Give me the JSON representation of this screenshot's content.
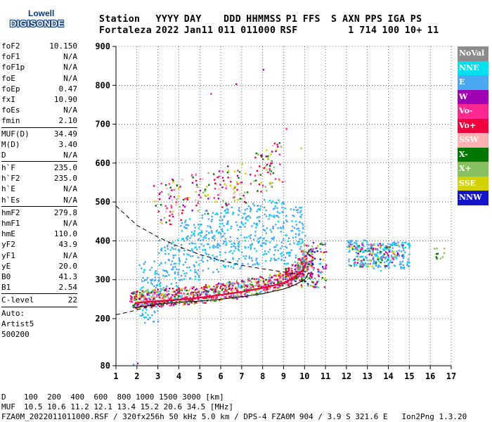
{
  "logo": {
    "line1": "Lowell",
    "line2": "DIGISONDE"
  },
  "header": {
    "labels": [
      "Station",
      "YYYY",
      "DAY",
      "DDD",
      "HHMMSS",
      "P1",
      "FFS",
      "S",
      "AXN",
      "PPS",
      "IGA",
      "PS"
    ],
    "values": [
      "Fortaleza",
      "2022",
      "Jan11",
      "011",
      "011000",
      "RSF",
      "1",
      "714",
      "100",
      "10+",
      "11"
    ]
  },
  "params": {
    "group1": [
      {
        "name": "foF2",
        "value": "10.150"
      },
      {
        "name": "foF1",
        "value": "N/A"
      },
      {
        "name": "foF1p",
        "value": "N/A"
      },
      {
        "name": "foE",
        "value": "N/A"
      },
      {
        "name": "foEp",
        "value": "0.47"
      },
      {
        "name": "fxI",
        "value": "10.90"
      },
      {
        "name": "foEs",
        "value": "N/A"
      },
      {
        "name": "fmin",
        "value": "2.10"
      }
    ],
    "group2": [
      {
        "name": "MUF(D)",
        "value": "34.49"
      },
      {
        "name": "M(D)",
        "value": "3.40"
      },
      {
        "name": "D",
        "value": "N/A"
      }
    ],
    "group3": [
      {
        "name": "h`F",
        "value": "235.0"
      },
      {
        "name": "h`F2",
        "value": "235.0"
      },
      {
        "name": "h`E",
        "value": "N/A"
      },
      {
        "name": "h`Es",
        "value": "N/A"
      }
    ],
    "group4": [
      {
        "name": "hmF2",
        "value": "279.8"
      },
      {
        "name": "hmF1",
        "value": "N/A"
      },
      {
        "name": "hmE",
        "value": "110.0"
      },
      {
        "name": "yF2",
        "value": "43.9"
      },
      {
        "name": "yF1",
        "value": "N/A"
      },
      {
        "name": "yE",
        "value": "20.0"
      },
      {
        "name": "B0",
        "value": "41.3"
      },
      {
        "name": "B1",
        "value": "2.54"
      }
    ],
    "group5": [
      {
        "name": "C-level",
        "value": "22"
      }
    ],
    "auto": [
      "Auto:",
      "Artist5",
      "500200"
    ]
  },
  "legend": [
    {
      "label": "NoVal",
      "color": "#8c8c8c"
    },
    {
      "label": "NNE",
      "color": "#00e0f0"
    },
    {
      "label": "E",
      "color": "#4aa8f0"
    },
    {
      "label": "W",
      "color": "#a000b4"
    },
    {
      "label": "Vo-",
      "color": "#ff2890"
    },
    {
      "label": "Vo+",
      "color": "#f0003c"
    },
    {
      "label": "SSW",
      "color": "#ffb0b0"
    },
    {
      "label": "X-",
      "color": "#007800"
    },
    {
      "label": "X+",
      "color": "#88c060"
    },
    {
      "label": "SSE",
      "color": "#d2d200"
    },
    {
      "label": "NNW",
      "color": "#1414c8"
    }
  ],
  "chart_data": {
    "type": "scatter",
    "xlabel": "",
    "ylabel": "",
    "xlim": [
      1,
      17
    ],
    "ylim": [
      80,
      900
    ],
    "x_ticks": [
      "1",
      "2",
      "3",
      "4",
      "5",
      "6",
      "7",
      "8",
      "9",
      "10",
      "11",
      "12",
      "13",
      "14",
      "15",
      "16",
      "17"
    ],
    "y_ticks": [
      "80",
      "200",
      "300",
      "400",
      "500",
      "600",
      "700",
      "800",
      "900"
    ],
    "grid": true,
    "legend_position": "right",
    "series": [
      {
        "name": "Vo+",
        "x": [
          1.9,
          2.2,
          2.6,
          3.0,
          3.5,
          4.0,
          4.5,
          5.0,
          5.5,
          6.0,
          6.5,
          7.0,
          7.5,
          8.0,
          8.5,
          9.0,
          9.3,
          9.6,
          9.9,
          10.1
        ],
        "y": [
          240,
          242,
          243,
          245,
          247,
          249,
          251,
          254,
          257,
          261,
          265,
          269,
          274,
          279,
          285,
          292,
          300,
          310,
          325,
          345
        ],
        "color": "#f0003c"
      },
      {
        "name": "E",
        "x": [
          2.5,
          3.5,
          4.5,
          5.5,
          6.5,
          7.5,
          8.5,
          9.5,
          12.5,
          13.5,
          14.5
        ],
        "y": [
          270,
          330,
          380,
          400,
          410,
          420,
          430,
          410,
          370,
          360,
          365
        ],
        "color": "#4aa8f0"
      },
      {
        "name": "Vo+ upper",
        "x": [
          3.2,
          4.0,
          5.0,
          6.0,
          7.0,
          8.0,
          8.6
        ],
        "y": [
          478,
          490,
          505,
          520,
          535,
          560,
          580
        ],
        "color": "#f0003c"
      }
    ],
    "lines": [
      {
        "name": "profile",
        "x": [
          1.9,
          3,
          4,
          5,
          6,
          7,
          8,
          9,
          9.5,
          10,
          10.2
        ],
        "y": [
          228,
          237,
          242,
          245,
          250,
          256,
          264,
          276,
          286,
          300,
          318
        ],
        "style": "solid"
      },
      {
        "name": "dashed-upper",
        "x": [
          1,
          2,
          3,
          4,
          5,
          6,
          7,
          8,
          9,
          10
        ],
        "y": [
          490,
          440,
          410,
          385,
          365,
          350,
          337,
          328,
          320,
          312
        ],
        "style": "dashed"
      },
      {
        "name": "dashed-lower",
        "x": [
          1,
          1.5,
          2,
          2.5,
          3,
          3.5,
          4
        ],
        "y": [
          210,
          216,
          222,
          230,
          238,
          244,
          248
        ],
        "style": "dashed"
      }
    ]
  },
  "footer": {
    "d_label": "D",
    "d_values": "100  200  400  600  800 1000 1500 3000 [km]",
    "muf_label": "MUF",
    "muf_values": "10.5 10.6 11.2 12.1 13.4 15.2 20.6 34.5 [MHz]",
    "file_line": "FZA0M_2022011011000.RSF / 320fx256h 50 kHz 5.0 km / DPS-4 FZA0M 904 / 3.9 S 321.6 E   Ion2Png 1.3.20"
  }
}
